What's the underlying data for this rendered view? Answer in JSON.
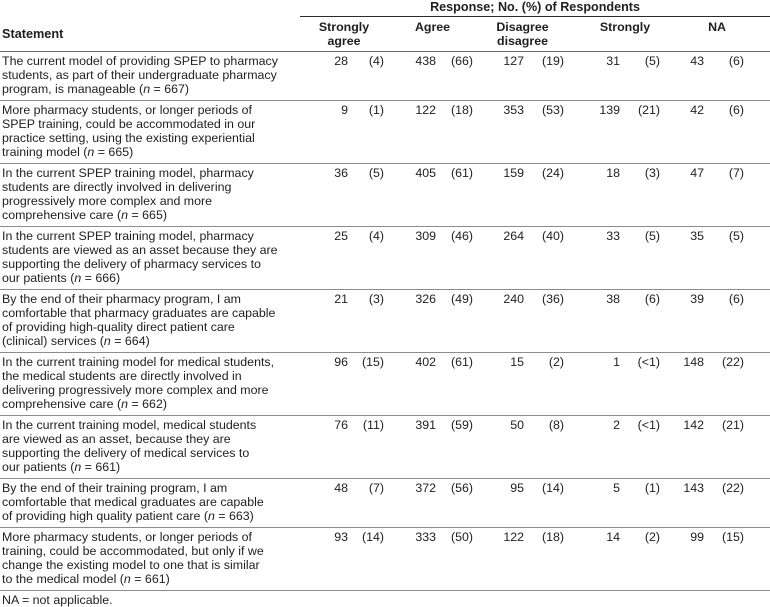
{
  "colors": {
    "text": "#1f1f1f",
    "rule_light": "#8c8c8c",
    "rule_dark": "#6b6b6b",
    "rule_black": "#2b2b2b",
    "background": "#ffffff"
  },
  "table": {
    "spanner": "Response; No. (%) of Respondents",
    "statement_header": "Statement",
    "category_headers": [
      "Strongly\nagree",
      "Agree",
      "Disagree\ndisagree",
      "Strongly",
      "NA"
    ],
    "rows": [
      {
        "statement_lines": [
          "The current model of providing SPEP to pharmacy",
          "students, as part of their undergraduate pharmacy",
          "program, is manageable (n = 667)"
        ],
        "values": [
          "28",
          "(4)",
          "438",
          "(66)",
          "127",
          "(19)",
          "31",
          "(5)",
          "43",
          "(6)"
        ]
      },
      {
        "statement_lines": [
          "More pharmacy students, or longer periods of",
          "SPEP training, could be accommodated in our",
          "practice setting, using the existing experiential",
          "training model (n = 665)"
        ],
        "values": [
          "9",
          "(1)",
          "122",
          "(18)",
          "353",
          "(53)",
          "139",
          "(21)",
          "42",
          "(6)"
        ]
      },
      {
        "statement_lines": [
          "In the current SPEP training model, pharmacy",
          "students are directly involved in delivering",
          "progressively more complex and more",
          "comprehensive care (n = 665)"
        ],
        "values": [
          "36",
          "(5)",
          "405",
          "(61)",
          "159",
          "(24)",
          "18",
          "(3)",
          "47",
          "(7)"
        ]
      },
      {
        "statement_lines": [
          "In the current SPEP training model, pharmacy",
          "students are viewed as an asset because they are",
          "supporting the delivery of pharmacy services to",
          "our patients (n = 666)"
        ],
        "values": [
          "25",
          "(4)",
          "309",
          "(46)",
          "264",
          "(40)",
          "33",
          "(5)",
          "35",
          "(5)"
        ]
      },
      {
        "statement_lines": [
          "By the end of their pharmacy program, I am",
          "comfortable that pharmacy graduates are capable",
          "of providing high-quality direct patient care",
          "(clinical) services (n = 664)"
        ],
        "values": [
          "21",
          "(3)",
          "326",
          "(49)",
          "240",
          "(36)",
          "38",
          "(6)",
          "39",
          "(6)"
        ]
      },
      {
        "statement_lines": [
          "In the current training model for medical students,",
          "the medical students are directly involved in",
          "delivering progressively more complex and more",
          "comprehensive care (n = 662)"
        ],
        "values": [
          "96",
          "(15)",
          "402",
          "(61)",
          "15",
          "(2)",
          "1",
          "(<1)",
          "148",
          "(22)"
        ]
      },
      {
        "statement_lines": [
          "In the current training model, medical students",
          "are viewed as an asset, because they are",
          "supporting the delivery of medical services to",
          "our patients (n = 661)"
        ],
        "values": [
          "76",
          "(11)",
          "391",
          "(59)",
          "50",
          "(8)",
          "2",
          "(<1)",
          "142",
          "(21)"
        ]
      },
      {
        "statement_lines": [
          "By the end of their training program, I am",
          "comfortable that medical graduates are capable",
          "of providing high quality patient care (n  = 663)"
        ],
        "values": [
          "48",
          "(7)",
          "372",
          "(56)",
          "95",
          "(14)",
          "5",
          "(1)",
          "143",
          "(22)"
        ]
      },
      {
        "statement_lines": [
          "More pharmacy students, or longer periods of",
          "training, could be accommodated, but only if we",
          "change the existing model to one that is similar",
          "to the medical model (n  = 661)"
        ],
        "values": [
          "93",
          "(14)",
          "333",
          "(50)",
          "122",
          "(18)",
          "14",
          "(2)",
          "99",
          "(15)"
        ]
      }
    ],
    "footnote": "NA = not applicable."
  }
}
